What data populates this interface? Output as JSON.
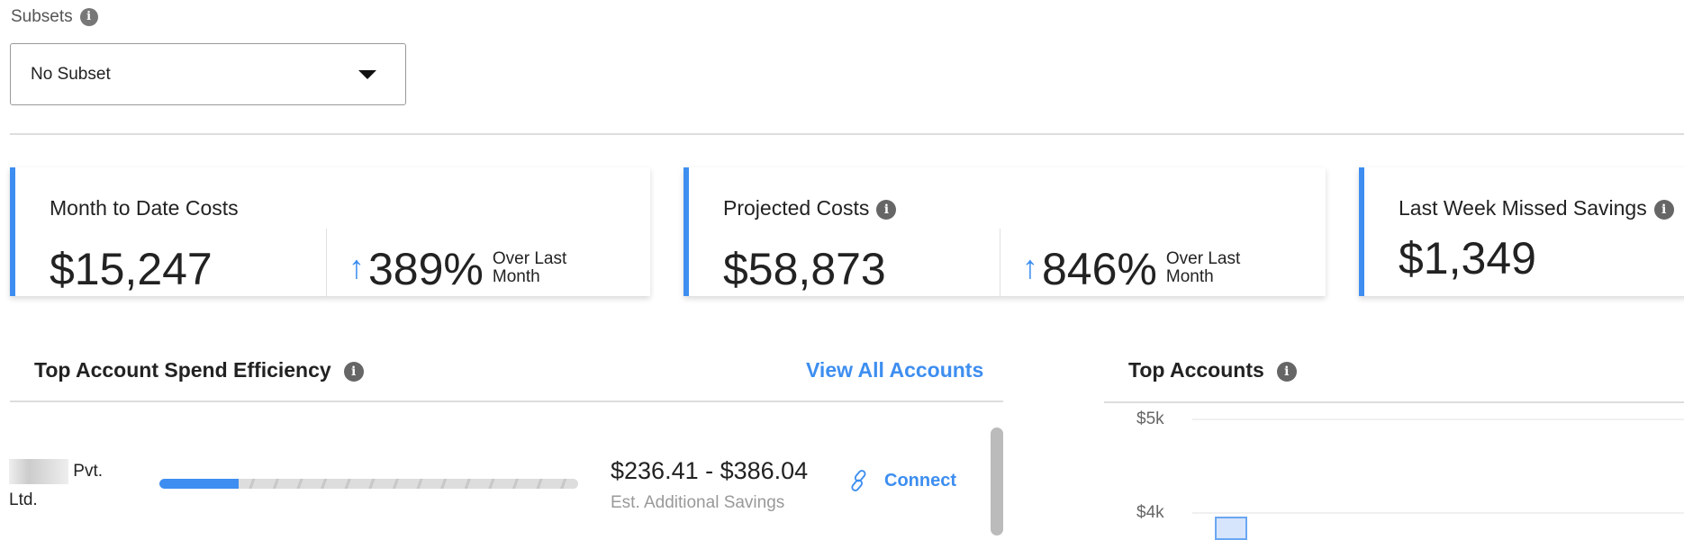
{
  "subsets": {
    "label": "Subsets",
    "selected": "No Subset"
  },
  "cards": [
    {
      "title": "Month to Date Costs",
      "value": "$15,247",
      "change": "389%",
      "change_label": "Over Last Month",
      "direction": "up"
    },
    {
      "title": "Projected Costs",
      "value": "$58,873",
      "change": "846%",
      "change_label": "Over Last Month",
      "direction": "up"
    },
    {
      "title": "Last Week Missed Savings",
      "value": "$1,349"
    }
  ],
  "efficiency": {
    "title": "Top Account Spend Efficiency",
    "view_all": "View All Accounts",
    "rows": [
      {
        "name": "Pvt. Ltd.",
        "progress_percent": 19,
        "savings": "$236.41 - $386.04",
        "savings_label": "Est. Additional Savings",
        "action": "Connect"
      }
    ]
  },
  "top_accounts": {
    "title": "Top Accounts"
  },
  "chart_data": {
    "type": "bar",
    "y_ticks": [
      "$5k",
      "$4k"
    ],
    "ylim_visible": [
      4000,
      5000
    ],
    "bars_visible": [
      {
        "value_approx": 3950
      }
    ],
    "grid": true
  },
  "colors": {
    "accent": "#3d8ef0"
  }
}
